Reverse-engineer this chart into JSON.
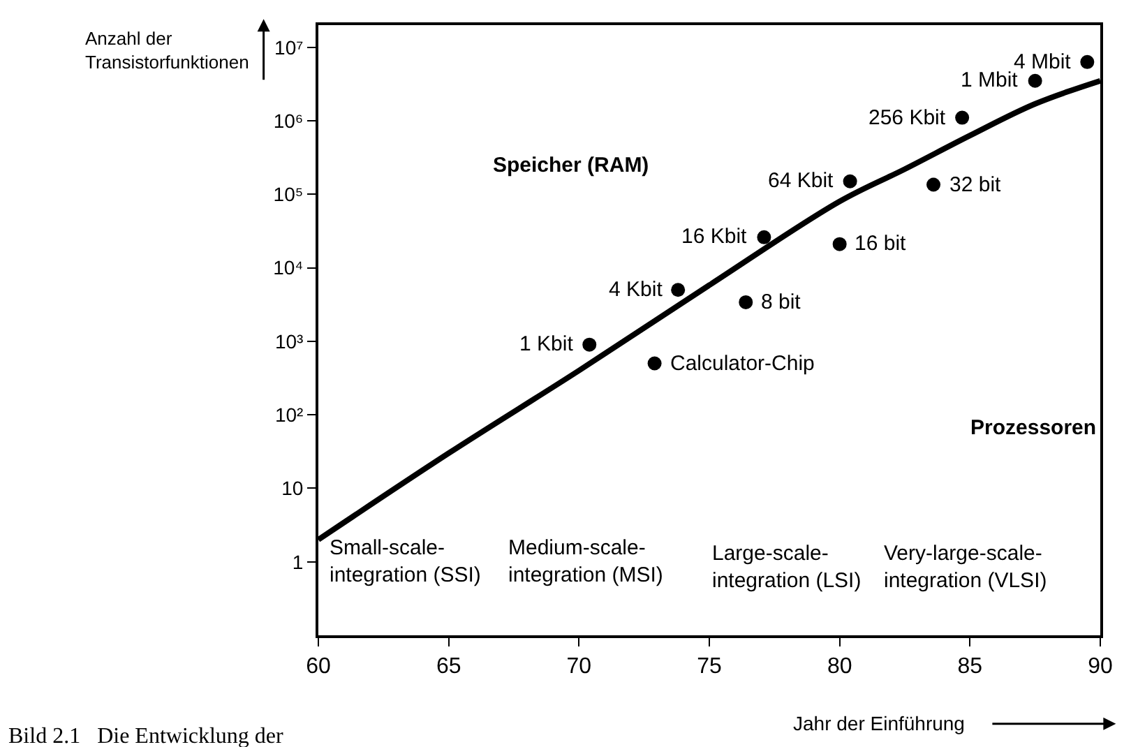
{
  "chart_data": {
    "type": "scatter",
    "xlabel": "Jahr der Einführung",
    "ylabel": "Anzahl der\nTransistorfunktionen",
    "x": [
      70.4,
      72.9,
      73.8,
      76.4,
      77.1,
      80.0,
      80.4,
      83.6,
      84.7,
      87.5,
      89.5
    ],
    "series": [
      {
        "marker": "circle",
        "color": "#000000",
        "values": [
          900,
          500,
          5000,
          3400,
          26000,
          21000,
          150000,
          135000,
          1100000,
          3500000,
          6300000
        ]
      },
      {
        "type": "line",
        "marker": "none",
        "color": "#000000",
        "x": [
          60,
          65,
          70,
          75,
          80,
          82.5,
          85,
          87.5,
          90
        ],
        "values": [
          2,
          30,
          400,
          5800,
          80000,
          220000,
          630000,
          1700000,
          3500000
        ]
      }
    ],
    "log": "y",
    "xlim": [
      60,
      90
    ],
    "xticks": [
      60,
      65,
      70,
      75,
      80,
      85,
      90
    ],
    "ylim": [
      0.1,
      20000000
    ],
    "yticks": [
      1,
      10,
      {
        "value": 100,
        "label": "10²"
      },
      {
        "value": 1000,
        "label": "10³"
      },
      {
        "value": 10000,
        "label": "10⁴"
      },
      {
        "value": 100000,
        "label": "10⁵"
      },
      {
        "value": 1000000,
        "label": "10⁶"
      },
      {
        "value": 10000000,
        "label": "10⁷"
      }
    ],
    "line_style": "solid",
    "annotations": [
      {
        "text": "1 Kbit",
        "x": 70.4,
        "y": 900
      },
      {
        "text": "Calculator-Chip",
        "x": 72.9,
        "y": 500
      },
      {
        "text": "4 Kbit",
        "x": 73.8,
        "y": 5000
      },
      {
        "text": "8 bit",
        "x": 76.4,
        "y": 3400
      },
      {
        "text": "16 Kbit",
        "x": 77.1,
        "y": 26000
      },
      {
        "text": "16 bit",
        "x": 80.0,
        "y": 21000
      },
      {
        "text": "64 Kbit",
        "x": 80.4,
        "y": 150000
      },
      {
        "text": "32 bit",
        "x": 83.6,
        "y": 135000
      },
      {
        "text": "256 Kbit",
        "x": 84.7,
        "y": 1100000
      },
      {
        "text": "1 Mbit",
        "x": 87.5,
        "y": 3500000
      },
      {
        "text": "4 Mbit",
        "x": 89.5,
        "y": 6300000
      },
      "Speicher (RAM)",
      "Prozessoren",
      "Small-scale-\nintegration (SSI)",
      "Medium-scale-\nintegration (MSI)",
      "Large-scale-\nintegration (LSI)",
      "Very-large-scale-\nintegration (VLSI)",
      "Bild 2.1   Die Entwicklung der"
    ]
  }
}
